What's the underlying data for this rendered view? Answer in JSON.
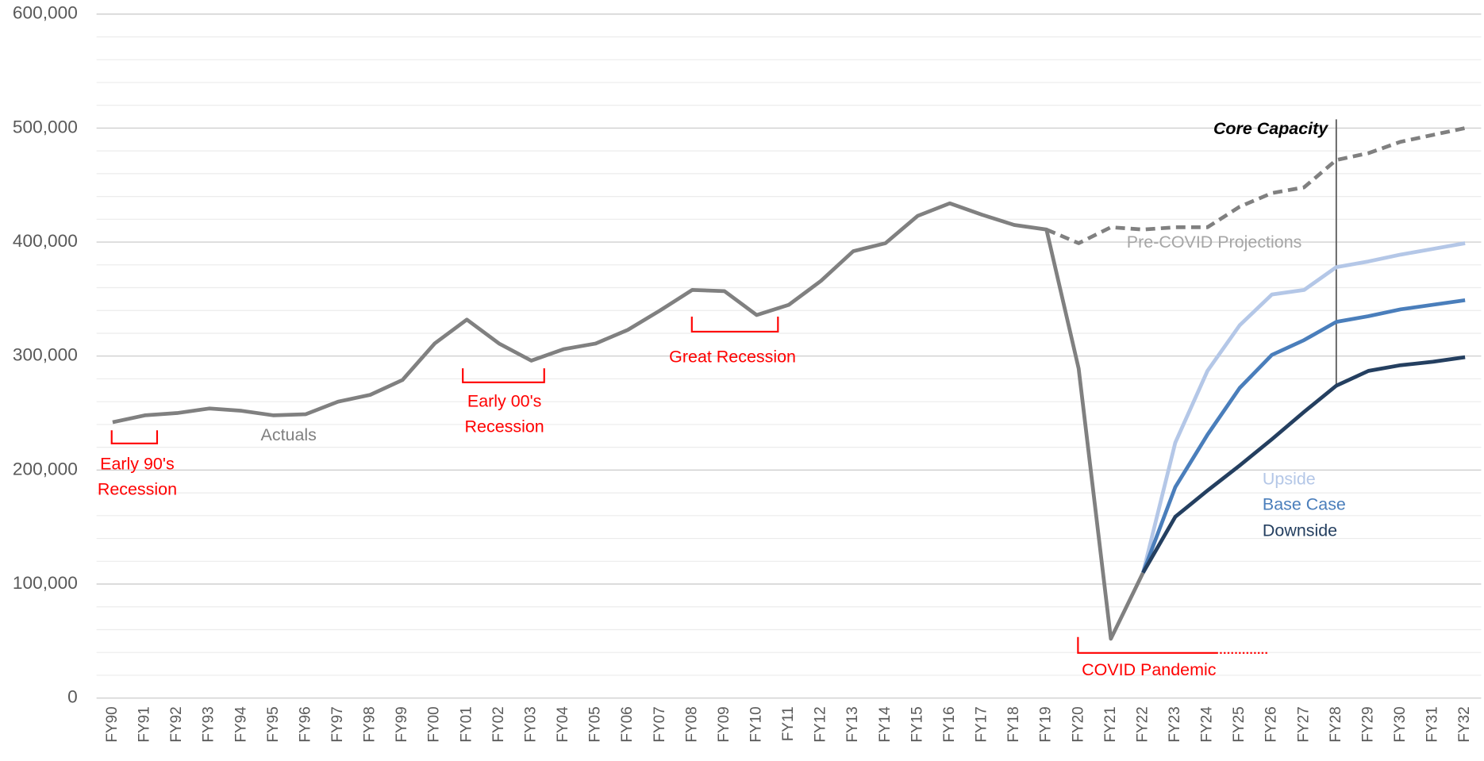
{
  "chart_data": {
    "type": "line",
    "categories": [
      "FY90",
      "FY91",
      "FY92",
      "FY93",
      "FY94",
      "FY95",
      "FY96",
      "FY97",
      "FY98",
      "FY99",
      "FY00",
      "FY01",
      "FY02",
      "FY03",
      "FY04",
      "FY05",
      "FY06",
      "FY07",
      "FY08",
      "FY09",
      "FY10",
      "FY11",
      "FY12",
      "FY13",
      "FY14",
      "FY15",
      "FY16",
      "FY17",
      "FY18",
      "FY19",
      "FY20",
      "FY21",
      "FY22",
      "FY23",
      "FY24",
      "FY25",
      "FY26",
      "FY27",
      "FY28",
      "FY29",
      "FY30",
      "FY31",
      "FY32"
    ],
    "series": [
      {
        "name": "Actuals",
        "color": "#808080",
        "style": "solid",
        "values": [
          242000,
          248000,
          250000,
          254000,
          252000,
          248000,
          249000,
          260000,
          266000,
          279000,
          311000,
          332000,
          311000,
          296000,
          306000,
          311000,
          323000,
          340000,
          358000,
          357000,
          336000,
          345000,
          366000,
          392000,
          399000,
          423000,
          434000,
          424000,
          415000,
          411000,
          289000,
          52000,
          110000,
          null,
          null,
          null,
          null,
          null,
          null,
          null,
          null,
          null,
          null
        ]
      },
      {
        "name": "Pre-COVID Projections",
        "color": "#808080",
        "style": "dashed",
        "values": [
          null,
          null,
          null,
          null,
          null,
          null,
          null,
          null,
          null,
          null,
          null,
          null,
          null,
          null,
          null,
          null,
          null,
          null,
          null,
          null,
          null,
          null,
          null,
          null,
          null,
          null,
          null,
          null,
          null,
          411000,
          399000,
          413000,
          411000,
          413000,
          413000,
          431000,
          443000,
          448000,
          472000,
          478000,
          488000,
          494000,
          500000
        ]
      },
      {
        "name": "Upside",
        "color": "#b4c7e7",
        "style": "solid",
        "values": [
          null,
          null,
          null,
          null,
          null,
          null,
          null,
          null,
          null,
          null,
          null,
          null,
          null,
          null,
          null,
          null,
          null,
          null,
          null,
          null,
          null,
          null,
          null,
          null,
          null,
          null,
          null,
          null,
          null,
          null,
          null,
          null,
          110000,
          224000,
          287000,
          327000,
          354000,
          358000,
          378000,
          383000,
          389000,
          394000,
          399000
        ]
      },
      {
        "name": "Base Case",
        "color": "#4a7ebb",
        "style": "solid",
        "values": [
          null,
          null,
          null,
          null,
          null,
          null,
          null,
          null,
          null,
          null,
          null,
          null,
          null,
          null,
          null,
          null,
          null,
          null,
          null,
          null,
          null,
          null,
          null,
          null,
          null,
          null,
          null,
          null,
          null,
          null,
          null,
          null,
          110000,
          185000,
          231000,
          272000,
          301000,
          314000,
          330000,
          335000,
          341000,
          345000,
          349000
        ]
      },
      {
        "name": "Downside",
        "color": "#243f60",
        "style": "solid",
        "values": [
          null,
          null,
          null,
          null,
          null,
          null,
          null,
          null,
          null,
          null,
          null,
          null,
          null,
          null,
          null,
          null,
          null,
          null,
          null,
          null,
          null,
          null,
          null,
          null,
          null,
          null,
          null,
          null,
          null,
          null,
          null,
          null,
          110000,
          159000,
          182000,
          204000,
          227000,
          251000,
          274000,
          287000,
          292000,
          295000,
          299000
        ]
      }
    ],
    "annotations": [
      {
        "lines": [
          "Early 90's",
          "Recession"
        ],
        "color": "#ff0000"
      },
      {
        "lines": [
          "Early 00's",
          "Recession"
        ],
        "color": "#ff0000"
      },
      {
        "lines": [
          "Great Recession"
        ],
        "color": "#ff0000"
      },
      {
        "lines": [
          "COVID Pandemic"
        ],
        "color": "#ff0000"
      },
      {
        "lines": [
          "Core Capacity"
        ],
        "color": "#000000"
      }
    ],
    "ylim": [
      0,
      600000
    ],
    "yticks": [
      {
        "value": 0,
        "label": "0"
      },
      {
        "value": 100000,
        "label": "100,000"
      },
      {
        "value": 200000,
        "label": "200,000"
      },
      {
        "value": 300000,
        "label": "300,000"
      },
      {
        "value": 400000,
        "label": "400,000"
      },
      {
        "value": 500000,
        "label": "500,000"
      },
      {
        "value": 600000,
        "label": "600,000"
      }
    ],
    "grid": true
  }
}
